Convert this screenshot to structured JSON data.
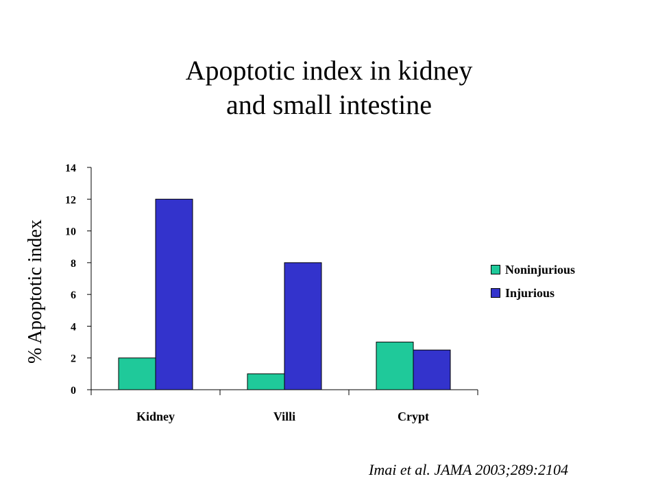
{
  "title": {
    "line1": "Apoptotic index in kidney",
    "line2": "and small intestine"
  },
  "citation": "Imai et al. JAMA 2003;289:2104",
  "chart_data": {
    "type": "bar",
    "title": "Apoptotic index in kidney and small intestine",
    "xlabel": "",
    "ylabel": "% Apoptotic index",
    "categories": [
      "Kidney",
      "Villi",
      "Crypt"
    ],
    "series": [
      {
        "name": "Noninjurious",
        "color": "#1fc99a",
        "values": [
          2,
          1,
          3
        ]
      },
      {
        "name": "Injurious",
        "color": "#3333cc",
        "values": [
          12,
          8,
          2.5
        ]
      }
    ],
    "ylim": [
      0,
      14
    ],
    "yticks": [
      "0",
      "2",
      "4",
      "6",
      "8",
      "10",
      "12",
      "14"
    ],
    "grid": false,
    "legend": "right"
  }
}
